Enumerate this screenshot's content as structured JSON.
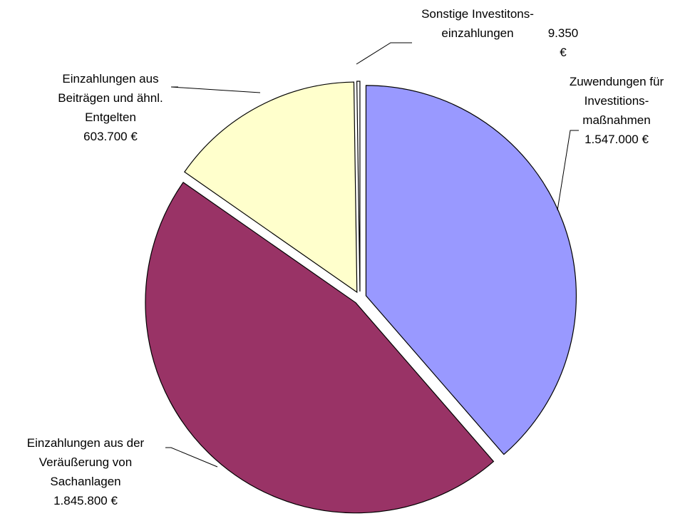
{
  "chart_data": {
    "type": "pie",
    "categories": [
      "Zuwendungen für\nInvestitions-\nmaßnahmen",
      "Einzahlungen aus der\nVeräußerung von\nSachanlagen",
      "Einzahlungen aus\nBeiträgen und ähnl.\nEntgelten",
      "Sonstige Investitons-\neinzahlungen"
    ],
    "values": [
      1547000,
      1845800,
      603700,
      9350
    ],
    "value_labels": [
      "1.547.000 €",
      "1.845.800 €",
      "603.700 €",
      "9.350 €"
    ],
    "colors": [
      "#9999ff",
      "#993366",
      "#ffffcc",
      "#ffffff"
    ]
  }
}
